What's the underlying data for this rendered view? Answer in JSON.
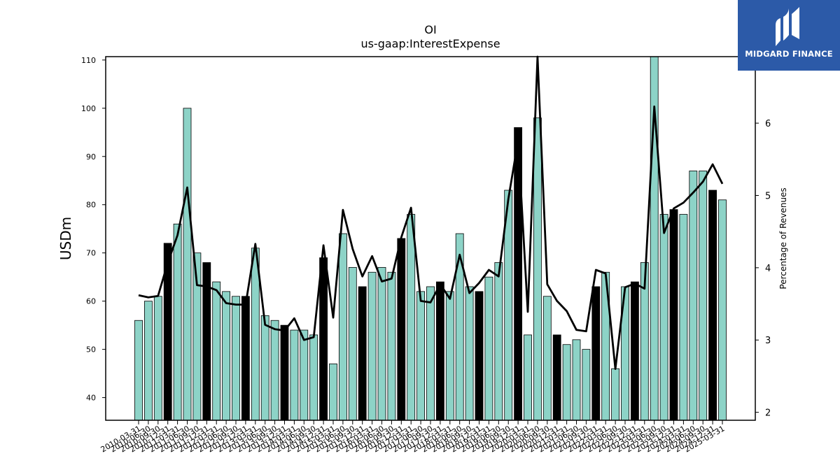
{
  "chart_data": {
    "type": "bar",
    "title": "OI",
    "subtitle": "us-gaap:InterestExpense",
    "ylabel": "USDm",
    "y2label": "Percentage of Revenues",
    "ylim": [
      35.3,
      110.7
    ],
    "y2lim": [
      1.89,
      6.92
    ],
    "yticks": [
      40,
      50,
      60,
      70,
      80,
      90,
      100,
      110
    ],
    "y2ticks": [
      2,
      3,
      4,
      5,
      6
    ],
    "categories": [
      "2010-03-31",
      "2010-06-30",
      "2010-09-30",
      "2010-12-31",
      "2011-03-31",
      "2011-06-30",
      "2011-09-30",
      "2011-12-31",
      "2012-03-31",
      "2012-06-30",
      "2012-09-30",
      "2012-12-31",
      "2013-03-31",
      "2013-06-30",
      "2013-09-30",
      "2013-12-31",
      "2014-03-31",
      "2014-06-30",
      "2014-09-30",
      "2014-12-31",
      "2015-03-31",
      "2015-06-30",
      "2015-09-30",
      "2015-12-31",
      "2016-03-31",
      "2016-06-30",
      "2016-09-30",
      "2016-12-31",
      "2017-03-31",
      "2017-06-30",
      "2017-09-30",
      "2017-12-31",
      "2018-03-31",
      "2018-06-30",
      "2018-09-30",
      "2018-12-31",
      "2019-03-31",
      "2019-06-30",
      "2019-09-30",
      "2019-12-31",
      "2020-03-31",
      "2020-06-30",
      "2020-09-30",
      "2020-12-31",
      "2021-03-31",
      "2021-06-30",
      "2021-09-30",
      "2021-12-31",
      "2022-03-31",
      "2022-06-30",
      "2022-09-30",
      "2022-12-31",
      "2023-03-31",
      "2023-06-30",
      "2023-09-30",
      "2023-12-31",
      "2024-03-31",
      "2024-06-30",
      "2024-09-30",
      "2024-12-31",
      "2025-03-31"
    ],
    "series": [
      {
        "type": "bar",
        "values": [
          56,
          60,
          61,
          72,
          76,
          100,
          70,
          68,
          64,
          62,
          61,
          61,
          71,
          57,
          56,
          55,
          54,
          54,
          53,
          69,
          47,
          74,
          67,
          63,
          66,
          67,
          66,
          73,
          78,
          62,
          63,
          64,
          62,
          74,
          63,
          62,
          65,
          68,
          83,
          96,
          53,
          98,
          61,
          53,
          51,
          52,
          50,
          63,
          66,
          46,
          63,
          64,
          68,
          111,
          78,
          79,
          78,
          87,
          87,
          83,
          81
        ],
        "highlight": [
          false,
          false,
          false,
          true,
          false,
          false,
          false,
          true,
          false,
          false,
          false,
          true,
          false,
          false,
          false,
          true,
          false,
          false,
          false,
          true,
          false,
          false,
          false,
          true,
          false,
          false,
          false,
          true,
          false,
          false,
          false,
          true,
          false,
          false,
          false,
          true,
          false,
          false,
          false,
          true,
          false,
          false,
          false,
          true,
          false,
          false,
          false,
          true,
          false,
          false,
          false,
          true,
          false,
          false,
          false,
          true,
          false,
          false,
          false,
          true,
          false
        ]
      },
      {
        "type": "line",
        "axis": "right",
        "values": [
          3.62,
          3.59,
          3.61,
          4.07,
          4.45,
          5.11,
          3.76,
          3.74,
          3.69,
          3.51,
          3.49,
          3.49,
          4.33,
          3.21,
          3.15,
          3.13,
          3.3,
          3.0,
          3.04,
          4.31,
          3.31,
          4.8,
          4.26,
          3.88,
          4.16,
          3.81,
          3.85,
          4.42,
          4.83,
          3.54,
          3.52,
          3.77,
          3.57,
          4.18,
          3.65,
          3.79,
          3.97,
          3.88,
          4.95,
          5.76,
          3.39,
          6.92,
          3.77,
          3.54,
          3.4,
          3.14,
          3.12,
          3.97,
          3.92,
          2.6,
          3.73,
          3.78,
          3.71,
          6.23,
          4.48,
          4.82,
          4.9,
          5.04,
          5.19,
          5.43,
          5.16
        ]
      }
    ],
    "colors": {
      "bar": "#8dd3c7",
      "bar_highlight": "#000000",
      "line": "#000000"
    },
    "grid": false,
    "legend": "none"
  },
  "logo": {
    "text": "MIDGARD FINANCE",
    "background": "#2c5aa8"
  }
}
